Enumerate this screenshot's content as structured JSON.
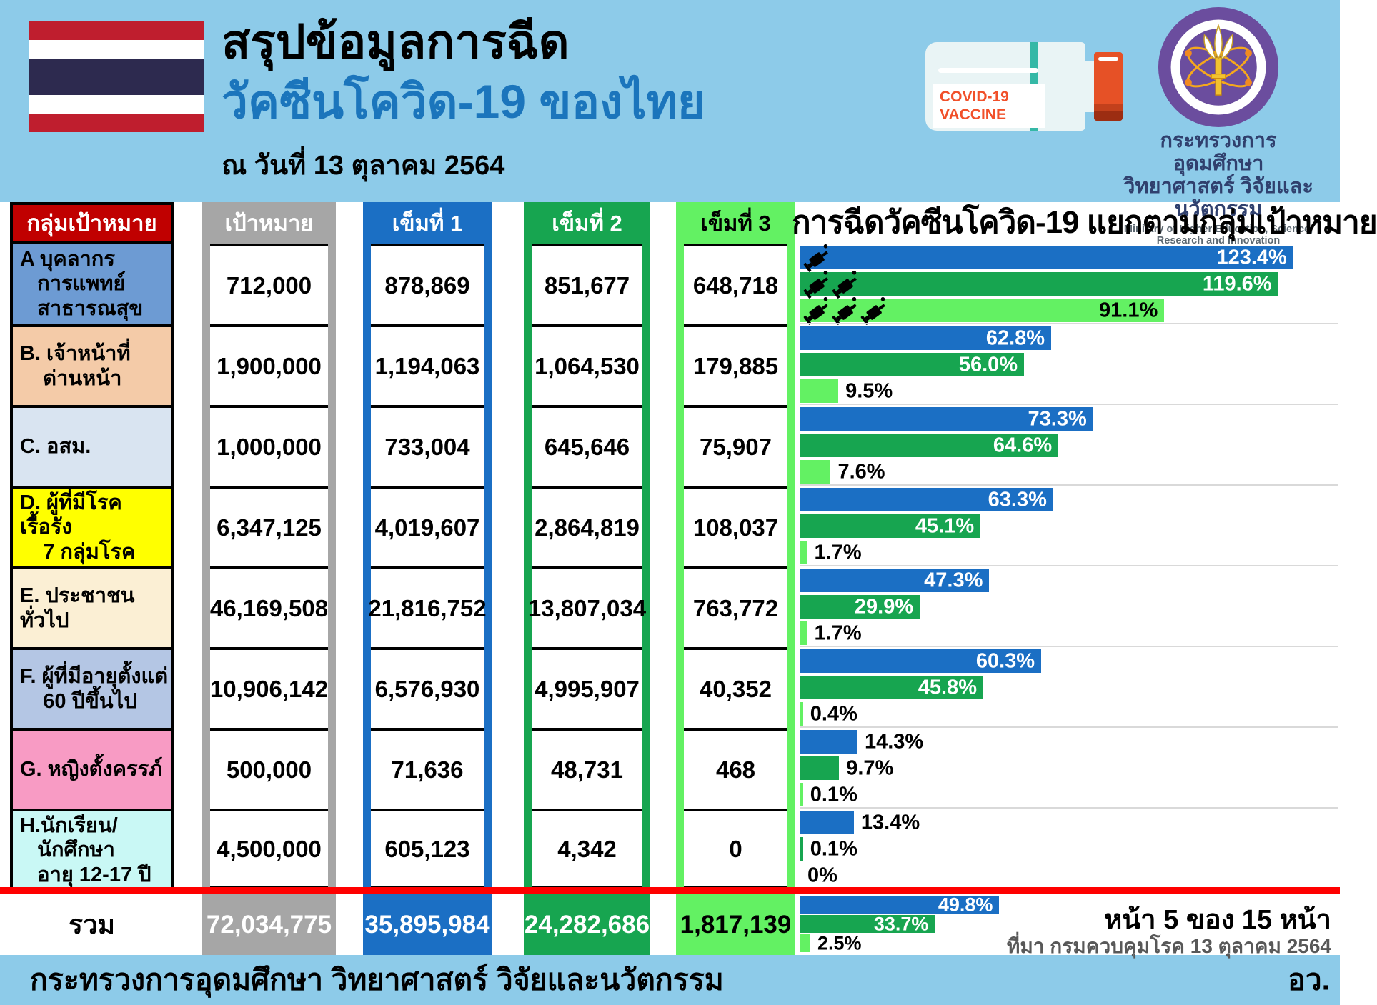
{
  "header": {
    "title_black": "สรุปข้อมูลการฉีด",
    "title_blue": "วัคซีนโควิด-19 ของไทย",
    "date_line": "ณ วันที่ 13 ตุลาคม 2564",
    "vial_label_line1": "COVID-19",
    "vial_label_line2": "VACCINE",
    "ministry_thai_line1": "กระทรวงการอุดมศึกษา",
    "ministry_thai_line2": "วิทยาศาสตร์ วิจัยและนวัตกรรม",
    "ministry_english": "Ministry of Higher Education, Science, Research and Innovation"
  },
  "table": {
    "col_group": "กลุ่มเป้าหมาย",
    "col_target": "เป้าหมาย",
    "col_dose1": "เข็มที่ 1",
    "col_dose2": "เข็มที่ 2",
    "col_dose3": "เข็มที่ 3",
    "rows": [
      {
        "key": "a",
        "label": "A บุคลากร\n   การแพทย์\n   สาธารณสุข",
        "row_color": "#6D9BD3",
        "target": "712,000",
        "dose1": "878,869",
        "dose2": "851,677",
        "dose3": "648,718"
      },
      {
        "key": "b",
        "label": "B. เจ้าหน้าที่\n    ด่านหน้า",
        "row_color": "#F4CBA8",
        "target": "1,900,000",
        "dose1": "1,194,063",
        "dose2": "1,064,530",
        "dose3": "179,885"
      },
      {
        "key": "c",
        "label": "C. อสม.",
        "row_color": "#D9E4F1",
        "target": "1,000,000",
        "dose1": "733,004",
        "dose2": "645,646",
        "dose3": "75,907"
      },
      {
        "key": "d",
        "label": "D. ผู้ที่มีโรคเรื้อรัง\n    7 กลุ่มโรค",
        "row_color": "#FFFF00",
        "target": "6,347,125",
        "dose1": "4,019,607",
        "dose2": "2,864,819",
        "dose3": "108,037"
      },
      {
        "key": "e",
        "label": "E. ประชาชนทั่วไป",
        "row_color": "#FBEFD4",
        "target": "46,169,508",
        "dose1": "21,816,752",
        "dose2": "13,807,034",
        "dose3": "763,772"
      },
      {
        "key": "f",
        "label": "F. ผู้ที่มีอายุตั้งแต่\n    60 ปีขึ้นไป",
        "row_color": "#B4C6E4",
        "target": "10,906,142",
        "dose1": "6,576,930",
        "dose2": "4,995,907",
        "dose3": "40,352"
      },
      {
        "key": "g",
        "label": "G. หญิงตั้งครรภ์",
        "row_color": "#F89BC4",
        "target": "500,000",
        "dose1": "71,636",
        "dose2": "48,731",
        "dose3": "468"
      },
      {
        "key": "h",
        "label": "H.นักเรียน/\n   นักศึกษา\n   อายุ 12-17 ปี",
        "row_color": "#C9F8F5",
        "target": "4,500,000",
        "dose1": "605,123",
        "dose2": "4,342",
        "dose3": "0"
      }
    ],
    "total": {
      "label": "รวม",
      "target": "72,034,775",
      "dose1": "35,895,984",
      "dose2": "24,282,686",
      "dose3": "1,817,139"
    }
  },
  "chart_data": {
    "type": "bar",
    "orientation": "horizontal",
    "title": "การฉีดวัคซีนโควิด-19 แยกตามกลุ่มเป้าหมาย",
    "unit": "%",
    "xlim": [
      0,
      134.7
    ],
    "legend_position": "none",
    "grid": false,
    "categories": [
      "A บุคลากรการแพทย์ สาธารณสุข",
      "B. เจ้าหน้าที่ด่านหน้า",
      "C. อสม.",
      "D. ผู้ที่มีโรคเรื้อรัง 7 กลุ่มโรค",
      "E. ประชาชนทั่วไป",
      "F. ผู้ที่มีอายุตั้งแต่ 60 ปีขึ้นไป",
      "G. หญิงตั้งครรภ์",
      "H.นักเรียน/นักศึกษา อายุ 12-17 ปี",
      "รวม"
    ],
    "series": [
      {
        "name": "เข็มที่ 1",
        "color": "#1B6FC4",
        "values": [
          123.4,
          62.8,
          73.3,
          63.3,
          47.3,
          60.3,
          14.3,
          13.4,
          49.8
        ],
        "labels": [
          "123.4%",
          "62.8%",
          "73.3%",
          "63.3%",
          "47.3%",
          "60.3%",
          "14.3%",
          "13.4%",
          "49.8%"
        ]
      },
      {
        "name": "เข็มที่ 2",
        "color": "#17A550",
        "values": [
          119.6,
          56.0,
          64.6,
          45.1,
          29.9,
          45.8,
          9.7,
          0.1,
          33.7
        ],
        "labels": [
          "119.6%",
          "56.0%",
          "64.6%",
          "45.1%",
          "29.9%",
          "45.8%",
          "9.7%",
          "0.1%",
          "33.7%"
        ]
      },
      {
        "name": "เข็มที่ 3",
        "color": "#63F163",
        "values": [
          91.1,
          9.5,
          7.6,
          1.7,
          1.7,
          0.4,
          0.1,
          0,
          2.5
        ],
        "labels": [
          "91.1%",
          "9.5%",
          "7.6%",
          "1.7%",
          "1.7%",
          "0.4%",
          "0.1%",
          "0%",
          "2.5%"
        ]
      }
    ],
    "syringe_icons_row_a": [
      1,
      2,
      3
    ]
  },
  "footer": {
    "ministry": "กระทรวงการอุดมศึกษา วิทยาศาสตร์ วิจัยและนวัตกรรม",
    "page_info": "หน้า 5 ของ 15 หน้า",
    "source": "ที่มา กรมควบคุมโรค 13 ตุลาคม 2564",
    "abbr": "อว."
  },
  "colors": {
    "topbar_bg": "#8DCBE9",
    "header_red": "#C00000",
    "target_gray": "#A6A6A6",
    "dose1_blue": "#1B6FC4",
    "dose2_green": "#17A550",
    "dose3_lightgreen": "#63F163",
    "title_blue": "#1B75BC",
    "red_line": "#FF0000",
    "flag_red": "#BF1E2E",
    "flag_navy": "#2D2A4F",
    "vial_cap_orange": "#E65126",
    "logo_purple": "#6B4D9E"
  }
}
